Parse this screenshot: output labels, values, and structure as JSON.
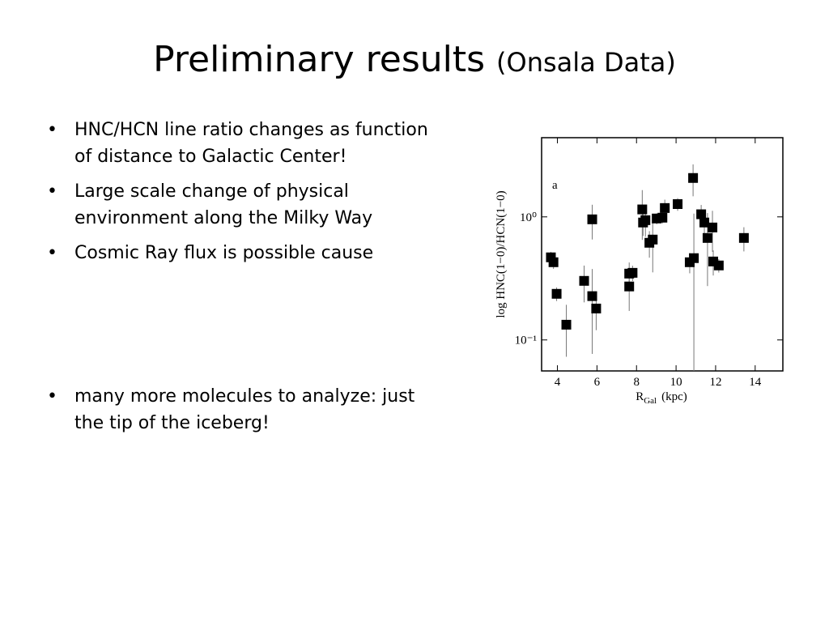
{
  "slide": {
    "title": "Preliminary results",
    "subtitle": "(Onsala Data)",
    "bullets": [
      "HNC/HCN line ratio changes as function of distance to Galactic Center!",
      "Large scale change of physical environment along the Milky Way",
      "Cosmic Ray flux is possible cause"
    ],
    "bullets_2": [
      "many more molecules to analyze: just the tip of the iceberg!"
    ]
  },
  "chart_data": {
    "type": "scatter",
    "annotation": "a",
    "x_label": {
      "main": "R",
      "sub": "Gal",
      "unit": "(kpc)"
    },
    "y_label": "log HNC(1−0)/HCN(1−0)",
    "color": "#000000",
    "log_y": true,
    "xlim": [
      3.2,
      15.4
    ],
    "xticks": [
      4,
      6,
      8,
      10,
      12,
      14
    ],
    "ylim": [
      0.056,
      4.4
    ],
    "yticks": [
      {
        "value": 1,
        "label": "10⁰"
      },
      {
        "value": 0.1,
        "label": "10⁻¹"
      }
    ],
    "series": [
      {
        "name": "HNC/HCN",
        "x": [
          3.67,
          3.8,
          3.96,
          4.45,
          5.35,
          5.76,
          5.76,
          5.96,
          7.63,
          7.63,
          7.8,
          8.29,
          8.33,
          8.45,
          8.65,
          8.82,
          9.02,
          9.31,
          9.43,
          10.08,
          10.69,
          10.9,
          10.86,
          11.27,
          11.43,
          11.59,
          11.84,
          11.88,
          12.16,
          13.43
        ],
        "values": [
          0.469,
          0.428,
          0.237,
          0.133,
          0.302,
          0.955,
          0.227,
          0.18,
          0.346,
          0.272,
          0.351,
          1.15,
          0.9,
          0.94,
          0.616,
          0.654,
          0.97,
          0.985,
          1.18,
          1.27,
          0.428,
          0.462,
          2.07,
          1.05,
          0.9,
          0.674,
          0.82,
          0.434,
          0.403,
          0.674
        ],
        "errors": [
          0.05,
          0.05,
          0.03,
          0.06,
          0.1,
          0.3,
          0.15,
          0.06,
          0.08,
          0.1,
          0.05,
          0.5,
          0.2,
          0.25,
          0.15,
          0.3,
          0.1,
          0.1,
          0.2,
          0.15,
          0.08,
          0.6,
          0.6,
          0.2,
          0.2,
          0.4,
          0.3,
          0.1,
          0.05,
          0.15
        ]
      }
    ]
  }
}
